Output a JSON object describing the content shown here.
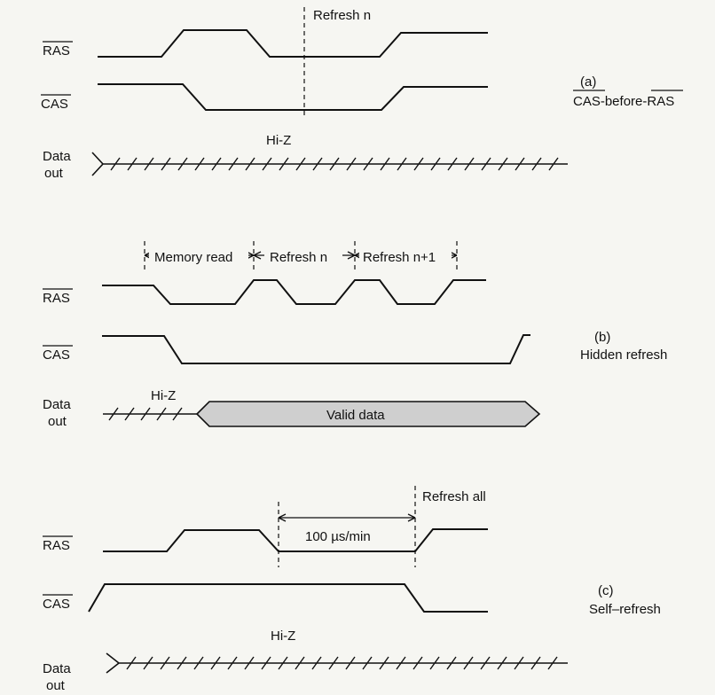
{
  "panel_a": {
    "ras_label": "RAS",
    "cas_label": "CAS",
    "refresh_label": "Refresh n",
    "hiz_label": "Hi-Z",
    "data_label_1": "Data",
    "data_label_2": "out",
    "tag": "(a)",
    "caption": "CAS-before-RAS"
  },
  "panel_b": {
    "memory_read_label": "Memory read",
    "refresh_n_label": "Refresh n",
    "refresh_n1_label": "Refresh n+1",
    "ras_label": "RAS",
    "cas_label": "CAS",
    "hiz_label": "Hi-Z",
    "valid_data_label": "Valid data",
    "data_label_1": "Data",
    "data_label_2": "out",
    "tag": "(b)",
    "caption": "Hidden refresh"
  },
  "panel_c": {
    "refresh_all_label": "Refresh all",
    "interval_label": "100 µs/min",
    "ras_label": "RAS",
    "cas_label": "CAS",
    "hiz_label": "Hi-Z",
    "data_label_1": "Data",
    "data_label_2": "out",
    "tag": "(c)",
    "caption": "Self–refresh"
  }
}
